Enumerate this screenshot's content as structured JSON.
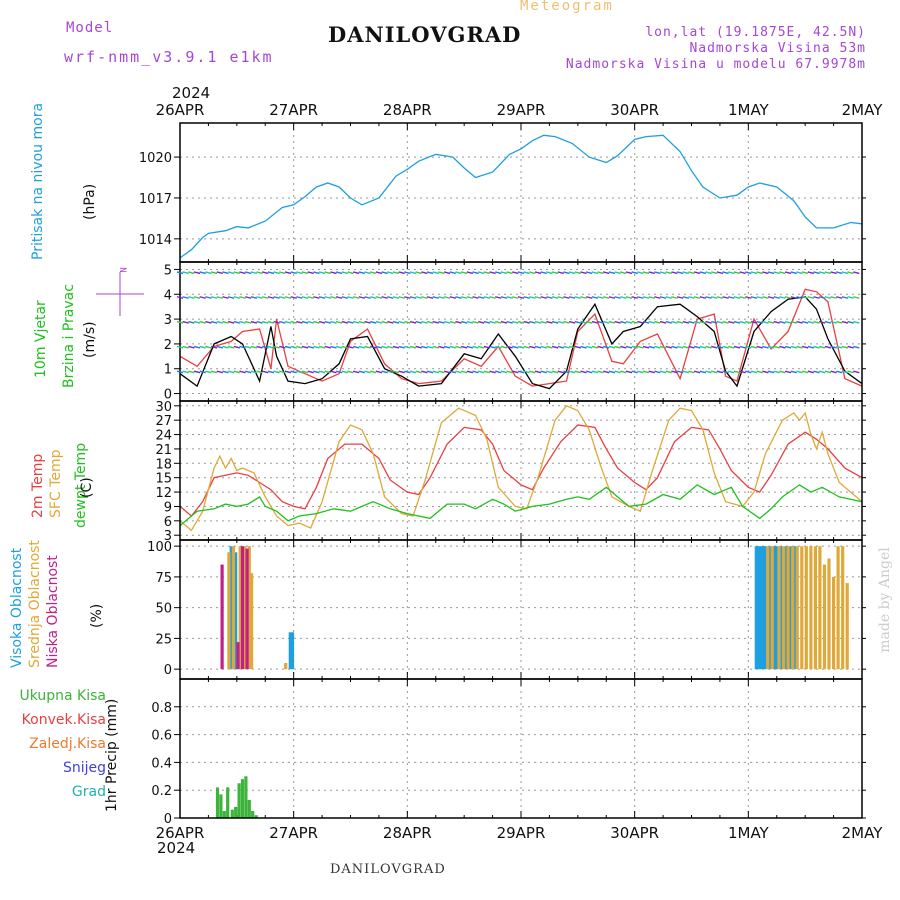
{
  "header": {
    "model_label": "Model",
    "model_value": "wrf-nmm_v3.9.1 e1km",
    "title": "DANILOVGRAD",
    "meteogram": "Meteogram",
    "lonlat": "lon,lat (19.1875E, 42.5N)",
    "elevation": "Nadmorska Visina 53m",
    "model_elevation": "Nadmorska Visina u modelu 67.9978m",
    "year_top": "2024",
    "year_bottom": "2024",
    "footer": "DANILOVGRAD",
    "credit": "made by Angel"
  },
  "colors": {
    "pressure": "#1e9fe0",
    "t2m": "#e84040",
    "sfc": "#e0a838",
    "dewpt": "#20c020",
    "high_cloud": "#1e9fe0",
    "mid_cloud": "#e0a838",
    "low_cloud": "#c0208a",
    "total_precip": "#3cb43c",
    "conv_precip": "#e84040",
    "frozen_precip": "#f07830",
    "snow": "#4040e0",
    "hail": "#20b0b0"
  },
  "chart_data": [
    {
      "type": "line",
      "panel": "pressure",
      "label": "Pritisak na nivou mora",
      "unit": "(hPa)",
      "x_ticks": [
        "26APR",
        "27APR",
        "28APR",
        "29APR",
        "30APR",
        "1MAY",
        "2MAY"
      ],
      "ylim": [
        1012.3,
        1022.5
      ],
      "y_ticks": [
        1014,
        1017,
        1020
      ],
      "grid": true,
      "series": [
        {
          "color_key": "pressure",
          "x": [
            0,
            0.1,
            0.2,
            0.25,
            0.4,
            0.5,
            0.6,
            0.75,
            0.9,
            1.0,
            1.1,
            1.2,
            1.3,
            1.4,
            1.5,
            1.6,
            1.75,
            1.9,
            2.0,
            2.1,
            2.25,
            2.4,
            2.5,
            2.6,
            2.75,
            2.9,
            3.0,
            3.1,
            3.2,
            3.3,
            3.45,
            3.6,
            3.75,
            3.85,
            4.0,
            4.1,
            4.25,
            4.4,
            4.5,
            4.6,
            4.75,
            4.9,
            5.0,
            5.1,
            5.25,
            5.4,
            5.5,
            5.6,
            5.75,
            5.9,
            6.0
          ],
          "y": [
            1012.6,
            1013.2,
            1014.1,
            1014.4,
            1014.6,
            1014.9,
            1014.8,
            1015.3,
            1016.3,
            1016.5,
            1017.1,
            1017.8,
            1018.1,
            1017.8,
            1017.0,
            1016.5,
            1017.0,
            1018.6,
            1019.1,
            1019.7,
            1020.2,
            1020.0,
            1019.2,
            1018.5,
            1018.9,
            1020.2,
            1020.6,
            1021.2,
            1021.6,
            1021.5,
            1021.0,
            1020.0,
            1019.6,
            1020.1,
            1021.3,
            1021.5,
            1021.6,
            1020.4,
            1019.0,
            1017.8,
            1017.0,
            1017.2,
            1017.8,
            1018.1,
            1017.8,
            1016.8,
            1015.6,
            1014.8,
            1014.8,
            1015.2,
            1015.1
          ]
        }
      ]
    },
    {
      "type": "line",
      "panel": "wind",
      "label_1": "10m Vjetar",
      "label_2": "Brzina i Pravac",
      "unit": "(m/s)",
      "compass": "N",
      "ylim": [
        -0.3,
        5.3
      ],
      "y_ticks": [
        0,
        1,
        2,
        3,
        4,
        5
      ],
      "grid": true,
      "series": [
        {
          "color": "#e84040",
          "x": [
            0,
            0.15,
            0.3,
            0.45,
            0.55,
            0.7,
            0.8,
            0.85,
            0.95,
            1.1,
            1.25,
            1.4,
            1.5,
            1.65,
            1.8,
            1.95,
            2.1,
            2.3,
            2.5,
            2.65,
            2.8,
            2.95,
            3.1,
            3.25,
            3.4,
            3.5,
            3.65,
            3.8,
            3.9,
            4.05,
            4.2,
            4.4,
            4.55,
            4.7,
            4.8,
            4.9,
            5.05,
            5.2,
            5.35,
            5.5,
            5.6,
            5.7,
            5.85,
            6.0
          ],
          "y": [
            1.5,
            1.1,
            1.9,
            2.1,
            2.5,
            2.6,
            1.0,
            3.0,
            1.1,
            0.8,
            0.5,
            0.8,
            2.1,
            2.6,
            1.2,
            0.6,
            0.4,
            0.5,
            1.4,
            1.1,
            1.9,
            0.7,
            0.3,
            0.4,
            0.5,
            2.5,
            3.2,
            1.3,
            1.2,
            2.1,
            2.4,
            0.6,
            3.0,
            3.2,
            0.7,
            0.5,
            3.0,
            1.8,
            2.5,
            4.2,
            4.1,
            3.7,
            0.6,
            0.3
          ]
        },
        {
          "color": "#000000",
          "x": [
            0,
            0.15,
            0.3,
            0.45,
            0.55,
            0.7,
            0.8,
            0.85,
            0.95,
            1.1,
            1.25,
            1.4,
            1.5,
            1.65,
            1.8,
            1.95,
            2.1,
            2.3,
            2.5,
            2.65,
            2.8,
            2.95,
            3.1,
            3.25,
            3.4,
            3.5,
            3.65,
            3.8,
            3.9,
            4.05,
            4.2,
            4.4,
            4.55,
            4.7,
            4.8,
            4.9,
            5.05,
            5.2,
            5.35,
            5.5,
            5.6,
            5.7,
            5.85,
            6.0
          ],
          "y": [
            0.8,
            0.3,
            2.0,
            2.3,
            2.0,
            0.5,
            2.7,
            1.5,
            0.5,
            0.4,
            0.6,
            1.2,
            2.2,
            2.3,
            1.0,
            0.7,
            0.3,
            0.4,
            1.6,
            1.4,
            2.4,
            1.5,
            0.4,
            0.2,
            0.9,
            2.6,
            3.6,
            2.0,
            2.5,
            2.7,
            3.5,
            3.6,
            3.1,
            2.5,
            0.9,
            0.3,
            2.5,
            3.3,
            3.8,
            3.9,
            3.4,
            2.2,
            0.9,
            0.4
          ]
        }
      ]
    },
    {
      "type": "line",
      "panel": "temperature",
      "label_t2m": "2m Temp",
      "label_sfc": "SFC Temp",
      "label_dewpt": "dewpt Temp",
      "unit": "(C)",
      "ylim": [
        2,
        31
      ],
      "y_ticks": [
        3,
        6,
        9,
        12,
        15,
        18,
        21,
        24,
        27,
        30
      ],
      "grid": true,
      "series": [
        {
          "name": "2m Temp",
          "color_key": "t2m",
          "x": [
            0,
            0.1,
            0.2,
            0.3,
            0.4,
            0.5,
            0.6,
            0.7,
            0.8,
            0.9,
            1.0,
            1.1,
            1.2,
            1.3,
            1.45,
            1.6,
            1.75,
            1.85,
            2.0,
            2.1,
            2.2,
            2.35,
            2.5,
            2.65,
            2.75,
            2.85,
            3.0,
            3.1,
            3.2,
            3.35,
            3.5,
            3.65,
            3.75,
            3.85,
            4.0,
            4.1,
            4.2,
            4.35,
            4.5,
            4.65,
            4.75,
            4.85,
            5.0,
            5.1,
            5.2,
            5.35,
            5.5,
            5.6,
            5.7,
            5.85,
            6.0
          ],
          "y": [
            9.0,
            7.0,
            10.0,
            15.0,
            15.5,
            16.0,
            15.5,
            14.0,
            12.5,
            10.0,
            9.0,
            8.5,
            13.0,
            19.0,
            22.0,
            22.0,
            19.0,
            14.5,
            12.0,
            11.5,
            15.0,
            22.0,
            25.5,
            25.0,
            22.0,
            16.5,
            13.5,
            12.5,
            17.0,
            22.5,
            26.0,
            25.5,
            21.0,
            17.0,
            14.0,
            12.5,
            15.0,
            22.5,
            25.5,
            25.0,
            21.0,
            16.5,
            13.0,
            12.0,
            15.5,
            22.0,
            24.5,
            23.0,
            21.0,
            17.0,
            15.0
          ]
        },
        {
          "name": "SFC Temp",
          "color_key": "sfc",
          "x": [
            0,
            0.1,
            0.2,
            0.3,
            0.35,
            0.4,
            0.45,
            0.5,
            0.55,
            0.65,
            0.75,
            0.85,
            0.95,
            1.05,
            1.15,
            1.25,
            1.4,
            1.5,
            1.6,
            1.7,
            1.8,
            1.95,
            2.05,
            2.15,
            2.3,
            2.45,
            2.6,
            2.7,
            2.8,
            2.95,
            3.05,
            3.15,
            3.3,
            3.4,
            3.5,
            3.6,
            3.7,
            3.8,
            3.95,
            4.05,
            4.15,
            4.3,
            4.4,
            4.5,
            4.6,
            4.7,
            4.8,
            4.95,
            5.05,
            5.15,
            5.3,
            5.4,
            5.45,
            5.5,
            5.55,
            5.6,
            5.65,
            5.7,
            5.8,
            6.0
          ],
          "y": [
            6.0,
            4.0,
            8.0,
            17.0,
            19.5,
            17.0,
            19.0,
            16.5,
            17.0,
            16.0,
            11.0,
            7.0,
            5.0,
            5.5,
            4.5,
            10.0,
            22.5,
            26.0,
            25.0,
            20.0,
            11.0,
            7.5,
            7.0,
            14.0,
            26.5,
            29.5,
            28.0,
            23.0,
            13.0,
            9.0,
            8.5,
            15.0,
            27.0,
            30.0,
            29.0,
            25.0,
            17.5,
            11.0,
            9.0,
            8.0,
            16.0,
            27.0,
            29.5,
            29.0,
            25.0,
            16.0,
            10.0,
            9.0,
            12.0,
            20.0,
            27.0,
            28.5,
            27.0,
            28.5,
            24.0,
            21.0,
            24.5,
            20.0,
            14.0,
            10.0
          ]
        },
        {
          "name": "dewpt Temp",
          "color_key": "dewpt",
          "x": [
            0,
            0.15,
            0.3,
            0.4,
            0.5,
            0.6,
            0.7,
            0.75,
            0.85,
            0.95,
            1.05,
            1.2,
            1.35,
            1.5,
            1.6,
            1.7,
            1.85,
            2.0,
            2.2,
            2.35,
            2.5,
            2.6,
            2.75,
            2.85,
            2.95,
            3.1,
            3.25,
            3.4,
            3.5,
            3.6,
            3.75,
            3.85,
            3.95,
            4.1,
            4.25,
            4.4,
            4.55,
            4.7,
            4.85,
            4.95,
            5.1,
            5.2,
            5.3,
            5.45,
            5.55,
            5.65,
            5.8,
            6.0
          ],
          "y": [
            5.0,
            8.0,
            8.5,
            9.5,
            9.0,
            9.5,
            11.0,
            9.0,
            8.0,
            6.0,
            7.0,
            7.5,
            8.5,
            8.0,
            9.0,
            10.0,
            8.5,
            7.5,
            6.5,
            9.5,
            9.5,
            8.5,
            10.5,
            9.5,
            8.0,
            9.0,
            9.5,
            10.5,
            11.0,
            10.5,
            13.0,
            11.0,
            9.0,
            9.5,
            11.5,
            10.5,
            13.5,
            11.5,
            13.0,
            9.0,
            6.5,
            8.5,
            11.0,
            13.5,
            12.0,
            13.0,
            11.0,
            10.0
          ]
        }
      ]
    },
    {
      "type": "bar",
      "panel": "clouds",
      "label_high": "Visoka Oblacnost",
      "label_mid": "Srednja Oblacnost",
      "label_low": "Niska Oblacnost",
      "unit": "(%)",
      "ylim": [
        -8,
        105
      ],
      "y_ticks": [
        0,
        25,
        50,
        75,
        100
      ],
      "grid": true,
      "series": [
        {
          "name": "Visoka Oblacnost",
          "color_key": "high_cloud",
          "x": [
            0.45,
            0.49,
            0.97,
            0.99,
            5.07,
            5.09,
            5.11,
            5.13,
            5.15,
            5.19,
            5.23,
            5.25,
            5.29,
            5.33,
            5.37,
            5.41
          ],
          "values": [
            100,
            95,
            30,
            30,
            100,
            100,
            100,
            100,
            100,
            100,
            100,
            100,
            100,
            100,
            100,
            100
          ]
        },
        {
          "name": "Srednja Oblacnost",
          "color_key": "mid_cloud",
          "x": [
            0.43,
            0.47,
            0.53,
            0.57,
            0.61,
            0.63,
            0.93,
            5.17,
            5.21,
            5.27,
            5.31,
            5.35,
            5.39,
            5.43,
            5.47,
            5.51,
            5.55,
            5.59,
            5.63,
            5.67,
            5.71,
            5.75,
            5.79,
            5.83,
            5.87
          ],
          "values": [
            95,
            100,
            100,
            100,
            100,
            78,
            5,
            100,
            100,
            100,
            100,
            100,
            100,
            100,
            100,
            100,
            100,
            100,
            100,
            85,
            90,
            75,
            100,
            100,
            70
          ]
        },
        {
          "name": "Niska Oblacnost",
          "color_key": "low_cloud",
          "x": [
            0.37,
            0.51,
            0.55,
            0.59
          ],
          "values": [
            85,
            22,
            100,
            98
          ]
        }
      ]
    },
    {
      "type": "bar",
      "panel": "precip",
      "label": "1hr Precip (mm)",
      "legend": [
        "Ukupna Kisa",
        "Konvek.Kisa",
        "Zaledj.Kisa",
        "Snijeg",
        "Grad"
      ],
      "x_ticks": [
        "26APR",
        "27APR",
        "28APR",
        "29APR",
        "30APR",
        "1MAY",
        "2MAY"
      ],
      "ylim": [
        0,
        1.0
      ],
      "y_ticks": [
        0,
        0.2,
        0.4,
        0.6,
        0.8
      ],
      "grid": true,
      "series": [
        {
          "name": "Ukupna Kisa",
          "color_key": "total_precip",
          "x": [
            0.33,
            0.36,
            0.39,
            0.42,
            0.46,
            0.49,
            0.52,
            0.55,
            0.58,
            0.61,
            0.64,
            0.67
          ],
          "values": [
            0.22,
            0.17,
            0.05,
            0.22,
            0.06,
            0.08,
            0.25,
            0.28,
            0.3,
            0.13,
            0.05,
            0.02
          ]
        }
      ]
    }
  ]
}
